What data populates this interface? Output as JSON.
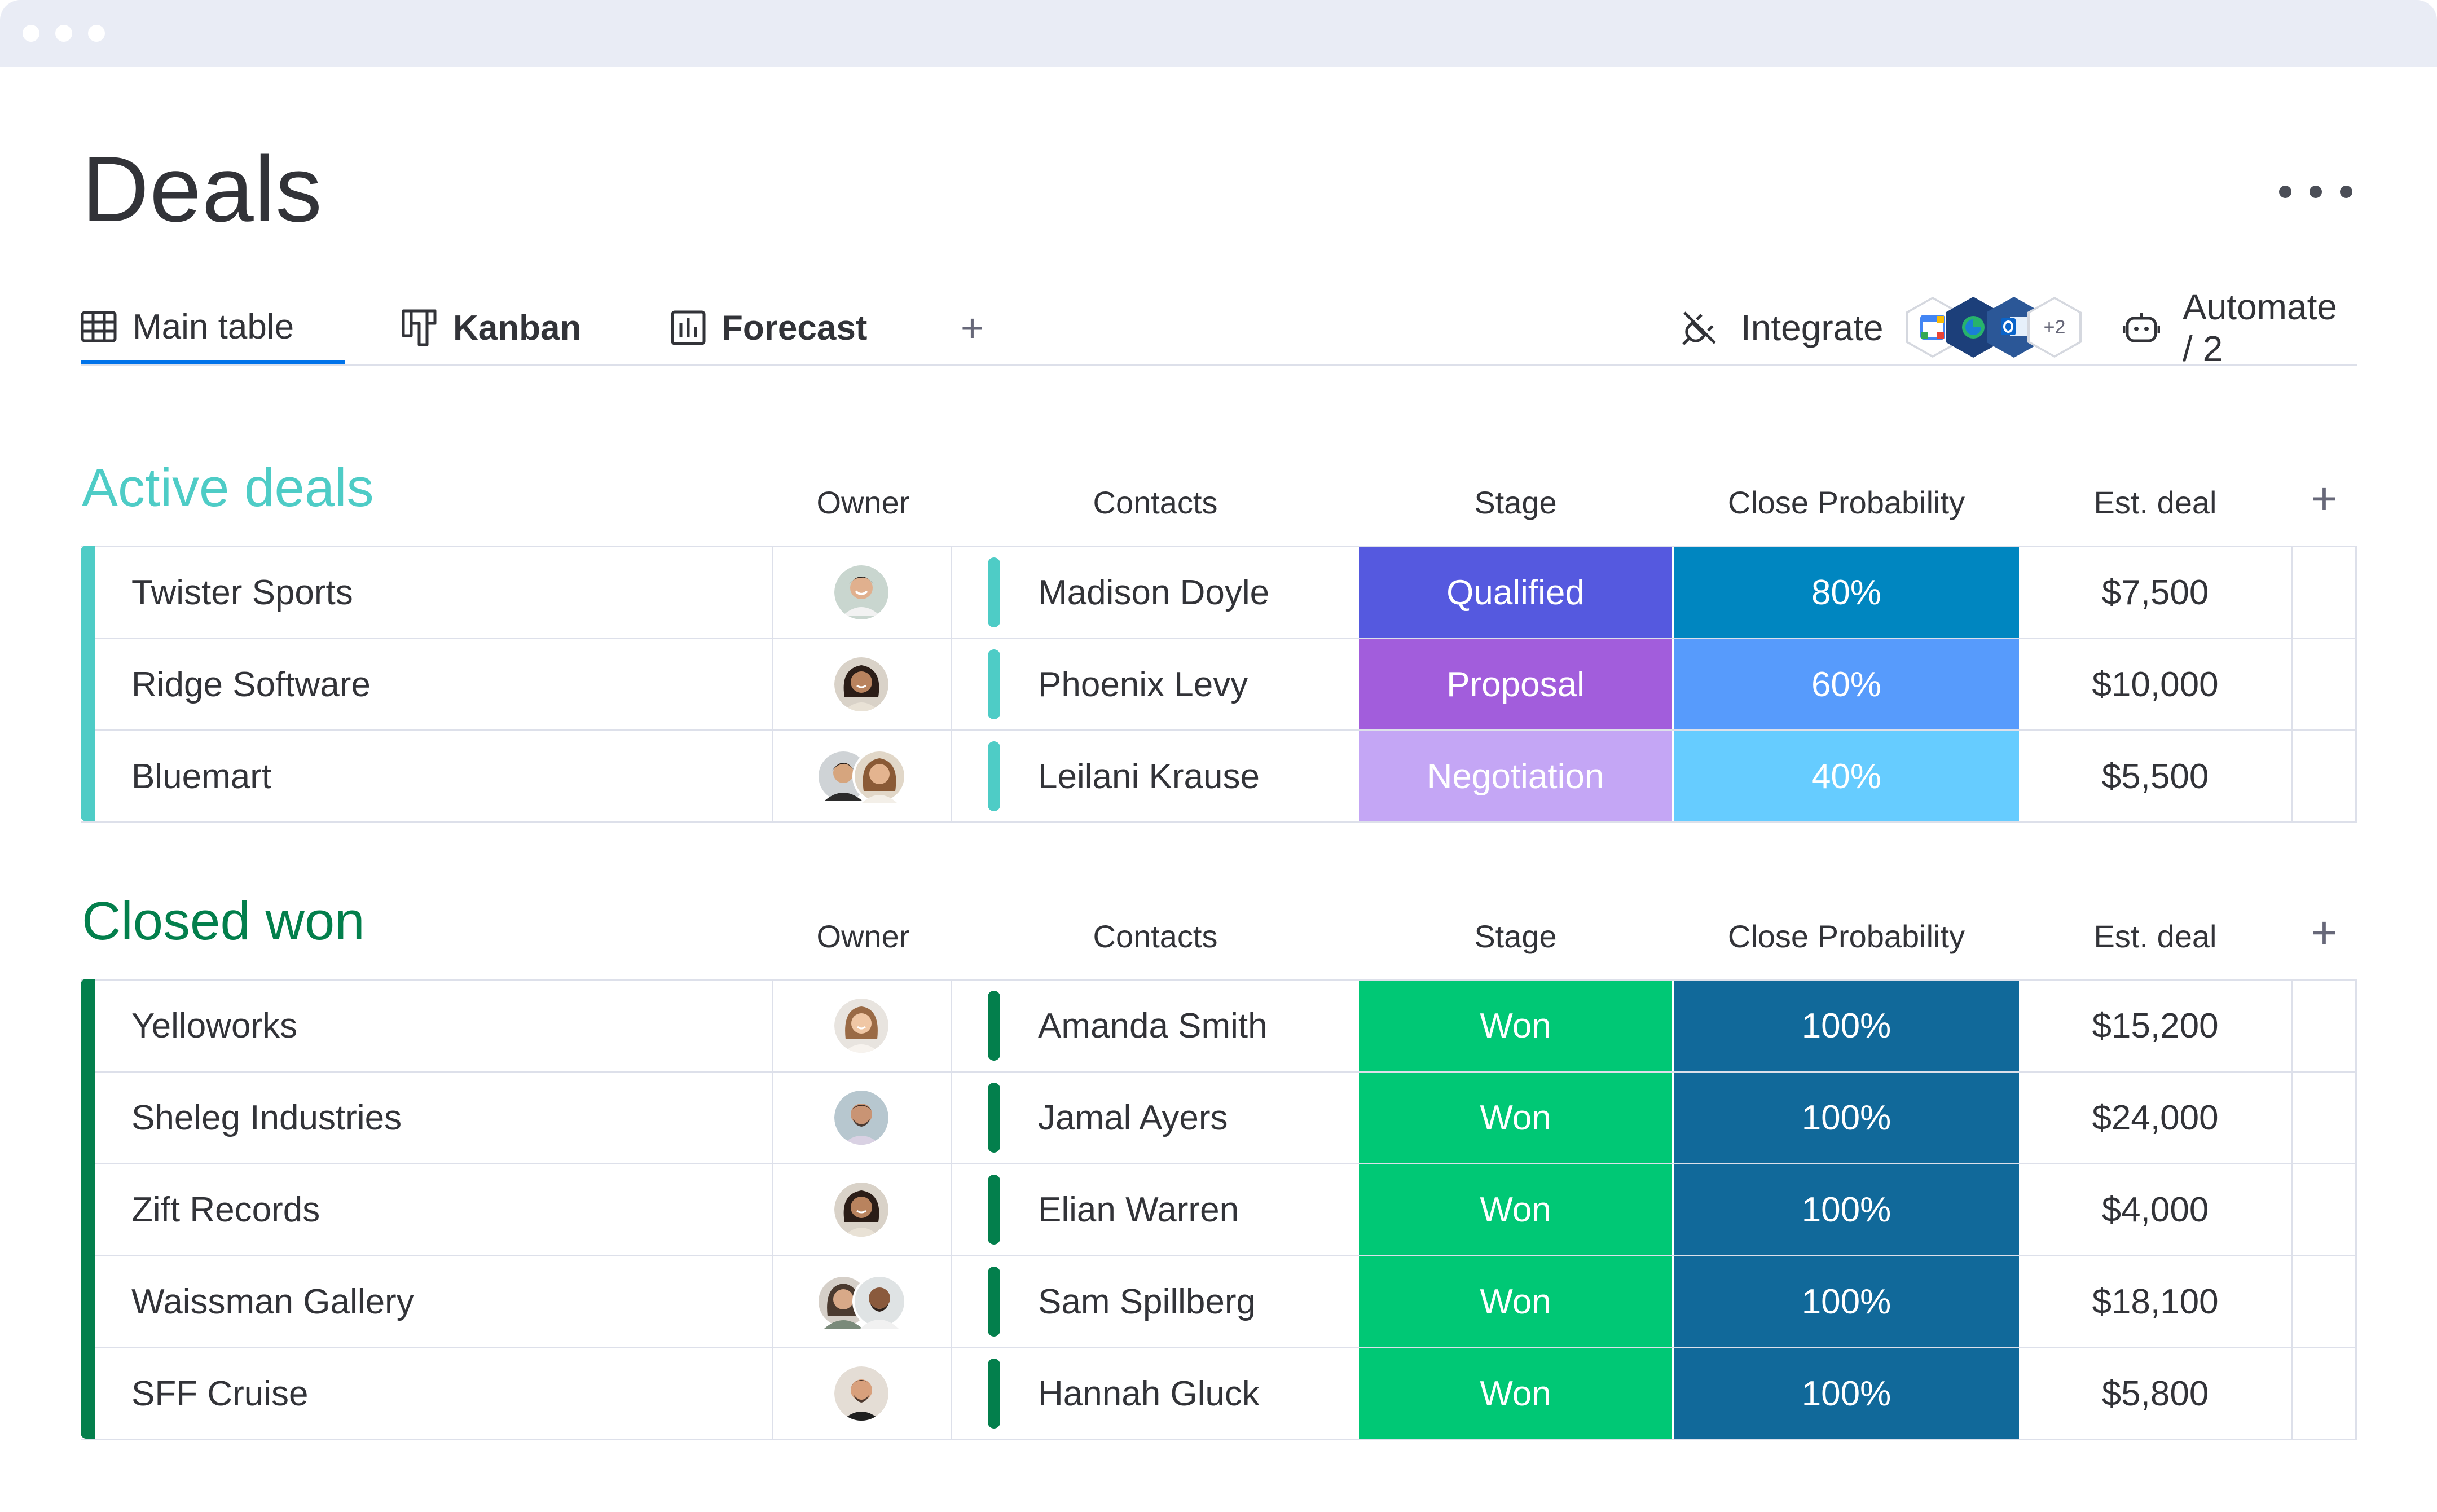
{
  "window": {
    "dots": 3
  },
  "page": {
    "title": "Deals",
    "more_icon": "more-horizontal-icon"
  },
  "tabs": [
    {
      "label": "Main table",
      "icon": "table-icon",
      "active": true
    },
    {
      "label": "Kanban",
      "icon": "kanban-icon",
      "active": false
    },
    {
      "label": "Forecast",
      "icon": "chart-icon",
      "active": false
    }
  ],
  "toolbar": {
    "add_tab_label": "+",
    "integrate_label": "Integrate",
    "integration_extra": "+2",
    "automate_label": "Automate / 2"
  },
  "columns": {
    "owner": "Owner",
    "contacts": "Contacts",
    "stage": "Stage",
    "probability": "Close Probability",
    "deal": "Est. deal",
    "add": "+"
  },
  "colors": {
    "active_group": "#4eccc6",
    "won_group": "#037f4c",
    "accent": "#0073ea"
  },
  "groups": [
    {
      "title": "Active deals",
      "color": "#4eccc6",
      "rows": [
        {
          "name": "Twister Sports",
          "contact": "Madison Doyle",
          "stage": "Qualified",
          "stage_color": "#5559df",
          "probability": "80%",
          "prob_color": "#0086c0",
          "deal": "$7,500"
        },
        {
          "name": "Ridge Software",
          "contact": "Phoenix Levy",
          "stage": "Proposal",
          "stage_color": "#a25ddc",
          "probability": "60%",
          "prob_color": "#579bfc",
          "deal": "$10,000"
        },
        {
          "name": "Bluemart",
          "contact": "Leilani Krause",
          "stage": "Negotiation",
          "stage_color": "#c4a6f5",
          "probability": "40%",
          "prob_color": "#66ccff",
          "deal": "$5,500"
        }
      ]
    },
    {
      "title": "Closed won",
      "color": "#037f4c",
      "rows": [
        {
          "name": "Yelloworks",
          "contact": "Amanda Smith",
          "stage": "Won",
          "stage_color": "#00c875",
          "probability": "100%",
          "prob_color": "#11699a",
          "deal": "$15,200"
        },
        {
          "name": "Sheleg Industries",
          "contact": "Jamal Ayers",
          "stage": "Won",
          "stage_color": "#00c875",
          "probability": "100%",
          "prob_color": "#11699a",
          "deal": "$24,000"
        },
        {
          "name": "Zift Records",
          "contact": "Elian Warren",
          "stage": "Won",
          "stage_color": "#00c875",
          "probability": "100%",
          "prob_color": "#11699a",
          "deal": "$4,000"
        },
        {
          "name": "Waissman Gallery",
          "contact": "Sam Spillberg",
          "stage": "Won",
          "stage_color": "#00c875",
          "probability": "100%",
          "prob_color": "#11699a",
          "deal": "$18,100"
        },
        {
          "name": "SFF Cruise",
          "contact": "Hannah Gluck",
          "stage": "Won",
          "stage_color": "#00c875",
          "probability": "100%",
          "prob_color": "#11699a",
          "deal": "$5,800"
        }
      ]
    }
  ]
}
